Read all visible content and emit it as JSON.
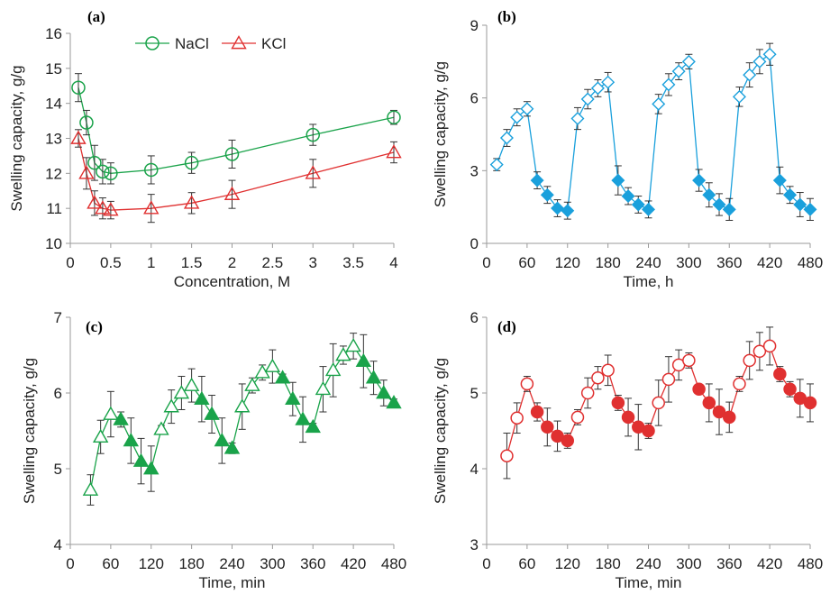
{
  "chart_data": [
    {
      "panel": "(a)",
      "type": "line",
      "xlabel": "Concentration, M",
      "ylabel": "Swelling capacity, g/g",
      "xlim": [
        0,
        4
      ],
      "ylim": [
        10,
        16
      ],
      "x_ticks": [
        0,
        0.5,
        1,
        1.5,
        2,
        2.5,
        3,
        3.5,
        4
      ],
      "x_tick_labels": [
        "0",
        "0.5",
        "1",
        "1.5",
        "2",
        "2.5",
        "3",
        "3.5",
        "4"
      ],
      "y_ticks": [
        10,
        11,
        12,
        13,
        14,
        15,
        16
      ],
      "y_tick_labels": [
        "10",
        "11",
        "12",
        "13",
        "14",
        "15",
        "16"
      ],
      "legend": {
        "placement": "top-center"
      },
      "series": [
        {
          "name": "NaCl",
          "marker": "circle-open",
          "color": "#1aa34a",
          "x": [
            0.1,
            0.2,
            0.3,
            0.4,
            0.5,
            1,
            1.5,
            2,
            3,
            4
          ],
          "y": [
            14.45,
            13.45,
            12.3,
            12.05,
            12.0,
            12.1,
            12.3,
            12.55,
            13.1,
            13.6
          ],
          "err": [
            0.4,
            0.35,
            0.5,
            0.35,
            0.3,
            0.4,
            0.3,
            0.4,
            0.3,
            0.2
          ]
        },
        {
          "name": "KCl",
          "marker": "triangle-open",
          "color": "#e03030",
          "x": [
            0.1,
            0.2,
            0.3,
            0.4,
            0.5,
            1,
            1.5,
            2,
            3,
            4
          ],
          "y": [
            13.0,
            12.0,
            11.15,
            11.0,
            10.95,
            11.0,
            11.15,
            11.4,
            12.0,
            12.6
          ],
          "err": [
            0.25,
            0.45,
            0.35,
            0.3,
            0.25,
            0.4,
            0.3,
            0.4,
            0.4,
            0.3
          ]
        }
      ]
    },
    {
      "panel": "(b)",
      "type": "line",
      "xlabel": "Time, h",
      "ylabel": "Swelling capacity, g/g",
      "xlim": [
        0,
        480
      ],
      "ylim": [
        0,
        9
      ],
      "x_ticks": [
        0,
        60,
        120,
        180,
        240,
        300,
        360,
        420,
        480
      ],
      "x_tick_labels": [
        "0",
        "60",
        "120",
        "180",
        "240",
        "300",
        "360",
        "420",
        "480"
      ],
      "y_ticks": [
        0,
        3,
        6,
        9
      ],
      "y_tick_labels": [
        "0",
        "3",
        "6",
        "9"
      ],
      "color": "#1aa0dc",
      "marker": "diamond",
      "points": [
        {
          "x": 15,
          "y": 3.25,
          "e": 0.25,
          "filled": false
        },
        {
          "x": 30,
          "y": 4.35,
          "e": 0.35,
          "filled": false
        },
        {
          "x": 45,
          "y": 5.2,
          "e": 0.35,
          "filled": false
        },
        {
          "x": 60,
          "y": 5.55,
          "e": 0.3,
          "filled": false
        },
        {
          "x": 75,
          "y": 2.6,
          "e": 0.35,
          "filled": true
        },
        {
          "x": 90,
          "y": 2.0,
          "e": 0.35,
          "filled": true
        },
        {
          "x": 105,
          "y": 1.45,
          "e": 0.35,
          "filled": true
        },
        {
          "x": 120,
          "y": 1.35,
          "e": 0.35,
          "filled": true
        },
        {
          "x": 135,
          "y": 5.15,
          "e": 0.45,
          "filled": false
        },
        {
          "x": 150,
          "y": 5.95,
          "e": 0.4,
          "filled": false
        },
        {
          "x": 165,
          "y": 6.4,
          "e": 0.35,
          "filled": false
        },
        {
          "x": 180,
          "y": 6.65,
          "e": 0.4,
          "filled": false
        },
        {
          "x": 195,
          "y": 2.6,
          "e": 0.6,
          "filled": true
        },
        {
          "x": 210,
          "y": 1.95,
          "e": 0.35,
          "filled": true
        },
        {
          "x": 225,
          "y": 1.6,
          "e": 0.35,
          "filled": true
        },
        {
          "x": 240,
          "y": 1.4,
          "e": 0.35,
          "filled": true
        },
        {
          "x": 255,
          "y": 5.75,
          "e": 0.4,
          "filled": false
        },
        {
          "x": 270,
          "y": 6.55,
          "e": 0.45,
          "filled": false
        },
        {
          "x": 285,
          "y": 7.1,
          "e": 0.35,
          "filled": false
        },
        {
          "x": 300,
          "y": 7.5,
          "e": 0.3,
          "filled": false
        },
        {
          "x": 315,
          "y": 2.6,
          "e": 0.45,
          "filled": true
        },
        {
          "x": 330,
          "y": 2.0,
          "e": 0.5,
          "filled": true
        },
        {
          "x": 345,
          "y": 1.6,
          "e": 0.45,
          "filled": true
        },
        {
          "x": 360,
          "y": 1.4,
          "e": 0.45,
          "filled": true
        },
        {
          "x": 375,
          "y": 6.05,
          "e": 0.4,
          "filled": false
        },
        {
          "x": 390,
          "y": 6.95,
          "e": 0.5,
          "filled": false
        },
        {
          "x": 405,
          "y": 7.5,
          "e": 0.5,
          "filled": false
        },
        {
          "x": 420,
          "y": 7.8,
          "e": 0.45,
          "filled": false
        },
        {
          "x": 435,
          "y": 2.6,
          "e": 0.55,
          "filled": true
        },
        {
          "x": 450,
          "y": 2.0,
          "e": 0.35,
          "filled": true
        },
        {
          "x": 465,
          "y": 1.6,
          "e": 0.5,
          "filled": true
        },
        {
          "x": 480,
          "y": 1.4,
          "e": 0.45,
          "filled": true
        }
      ]
    },
    {
      "panel": "(c)",
      "type": "line",
      "xlabel": "Time, min",
      "ylabel": "Swelling capacity, g/g",
      "xlim": [
        0,
        480
      ],
      "ylim": [
        4,
        7
      ],
      "x_ticks": [
        0,
        60,
        120,
        180,
        240,
        300,
        360,
        420,
        480
      ],
      "x_tick_labels": [
        "0",
        "60",
        "120",
        "180",
        "240",
        "300",
        "360",
        "420",
        "480"
      ],
      "y_ticks": [
        4,
        5,
        6,
        7
      ],
      "y_tick_labels": [
        "4",
        "5",
        "6",
        "7"
      ],
      "color": "#1aa34a",
      "marker": "triangle",
      "points": [
        {
          "x": 30,
          "y": 4.72,
          "e": 0.2,
          "filled": false
        },
        {
          "x": 45,
          "y": 5.42,
          "e": 0.22,
          "filled": false
        },
        {
          "x": 60,
          "y": 5.72,
          "e": 0.3,
          "filled": false
        },
        {
          "x": 75,
          "y": 5.65,
          "e": 0.1,
          "filled": true
        },
        {
          "x": 90,
          "y": 5.37,
          "e": 0.3,
          "filled": true
        },
        {
          "x": 105,
          "y": 5.1,
          "e": 0.3,
          "filled": true
        },
        {
          "x": 120,
          "y": 5.0,
          "e": 0.3,
          "filled": true
        },
        {
          "x": 135,
          "y": 5.52,
          "e": 0.05,
          "filled": false
        },
        {
          "x": 150,
          "y": 5.82,
          "e": 0.22,
          "filled": false
        },
        {
          "x": 165,
          "y": 6.0,
          "e": 0.22,
          "filled": false
        },
        {
          "x": 180,
          "y": 6.1,
          "e": 0.22,
          "filled": false
        },
        {
          "x": 195,
          "y": 5.92,
          "e": 0.3,
          "filled": true
        },
        {
          "x": 210,
          "y": 5.72,
          "e": 0.25,
          "filled": true
        },
        {
          "x": 225,
          "y": 5.37,
          "e": 0.3,
          "filled": true
        },
        {
          "x": 240,
          "y": 5.27,
          "e": 0.07,
          "filled": true
        },
        {
          "x": 255,
          "y": 5.82,
          "e": 0.3,
          "filled": false
        },
        {
          "x": 270,
          "y": 6.1,
          "e": 0.1,
          "filled": false
        },
        {
          "x": 285,
          "y": 6.27,
          "e": 0.1,
          "filled": false
        },
        {
          "x": 300,
          "y": 6.35,
          "e": 0.22,
          "filled": false
        },
        {
          "x": 315,
          "y": 6.2,
          "e": 0.05,
          "filled": true
        },
        {
          "x": 330,
          "y": 5.92,
          "e": 0.22,
          "filled": true
        },
        {
          "x": 345,
          "y": 5.65,
          "e": 0.3,
          "filled": true
        },
        {
          "x": 360,
          "y": 5.55,
          "e": 0.05,
          "filled": true
        },
        {
          "x": 375,
          "y": 6.05,
          "e": 0.3,
          "filled": false
        },
        {
          "x": 390,
          "y": 6.3,
          "e": 0.35,
          "filled": false
        },
        {
          "x": 405,
          "y": 6.5,
          "e": 0.12,
          "filled": false
        },
        {
          "x": 420,
          "y": 6.62,
          "e": 0.17,
          "filled": false
        },
        {
          "x": 435,
          "y": 6.42,
          "e": 0.35,
          "filled": true
        },
        {
          "x": 450,
          "y": 6.2,
          "e": 0.22,
          "filled": true
        },
        {
          "x": 465,
          "y": 6.0,
          "e": 0.17,
          "filled": true
        },
        {
          "x": 480,
          "y": 5.87,
          "e": 0.05,
          "filled": true
        }
      ]
    },
    {
      "panel": "(d)",
      "type": "line",
      "xlabel": "Time, min",
      "ylabel": "Swelling capacity, g/g",
      "xlim": [
        0,
        480
      ],
      "ylim": [
        3,
        6
      ],
      "x_ticks": [
        0,
        60,
        120,
        180,
        240,
        300,
        360,
        420,
        480
      ],
      "x_tick_labels": [
        "0",
        "60",
        "120",
        "180",
        "240",
        "300",
        "360",
        "420",
        "480"
      ],
      "y_ticks": [
        3,
        4,
        5,
        6
      ],
      "y_tick_labels": [
        "3",
        "4",
        "5",
        "6"
      ],
      "color": "#e03030",
      "marker": "circle",
      "points": [
        {
          "x": 30,
          "y": 4.17,
          "e": 0.3,
          "filled": false
        },
        {
          "x": 45,
          "y": 4.67,
          "e": 0.2,
          "filled": false
        },
        {
          "x": 60,
          "y": 5.12,
          "e": 0.1,
          "filled": false
        },
        {
          "x": 75,
          "y": 4.75,
          "e": 0.12,
          "filled": true
        },
        {
          "x": 90,
          "y": 4.55,
          "e": 0.25,
          "filled": true
        },
        {
          "x": 105,
          "y": 4.43,
          "e": 0.2,
          "filled": true
        },
        {
          "x": 120,
          "y": 4.37,
          "e": 0.1,
          "filled": true
        },
        {
          "x": 135,
          "y": 4.68,
          "e": 0.1,
          "filled": false
        },
        {
          "x": 150,
          "y": 5.0,
          "e": 0.2,
          "filled": false
        },
        {
          "x": 165,
          "y": 5.2,
          "e": 0.15,
          "filled": false
        },
        {
          "x": 180,
          "y": 5.3,
          "e": 0.2,
          "filled": false
        },
        {
          "x": 195,
          "y": 4.87,
          "e": 0.1,
          "filled": true
        },
        {
          "x": 210,
          "y": 4.68,
          "e": 0.25,
          "filled": true
        },
        {
          "x": 225,
          "y": 4.55,
          "e": 0.3,
          "filled": true
        },
        {
          "x": 240,
          "y": 4.5,
          "e": 0.1,
          "filled": true
        },
        {
          "x": 255,
          "y": 4.87,
          "e": 0.3,
          "filled": false
        },
        {
          "x": 270,
          "y": 5.18,
          "e": 0.3,
          "filled": false
        },
        {
          "x": 285,
          "y": 5.37,
          "e": 0.2,
          "filled": false
        },
        {
          "x": 300,
          "y": 5.43,
          "e": 0.1,
          "filled": false
        },
        {
          "x": 315,
          "y": 5.05,
          "e": 0.05,
          "filled": true
        },
        {
          "x": 330,
          "y": 4.87,
          "e": 0.25,
          "filled": true
        },
        {
          "x": 345,
          "y": 4.75,
          "e": 0.3,
          "filled": true
        },
        {
          "x": 360,
          "y": 4.68,
          "e": 0.2,
          "filled": true
        },
        {
          "x": 375,
          "y": 5.12,
          "e": 0.1,
          "filled": false
        },
        {
          "x": 390,
          "y": 5.43,
          "e": 0.25,
          "filled": false
        },
        {
          "x": 405,
          "y": 5.55,
          "e": 0.25,
          "filled": false
        },
        {
          "x": 420,
          "y": 5.62,
          "e": 0.25,
          "filled": false
        },
        {
          "x": 435,
          "y": 5.25,
          "e": 0.1,
          "filled": true
        },
        {
          "x": 450,
          "y": 5.05,
          "e": 0.1,
          "filled": true
        },
        {
          "x": 465,
          "y": 4.93,
          "e": 0.25,
          "filled": true
        },
        {
          "x": 480,
          "y": 4.87,
          "e": 0.25,
          "filled": true
        }
      ]
    }
  ]
}
